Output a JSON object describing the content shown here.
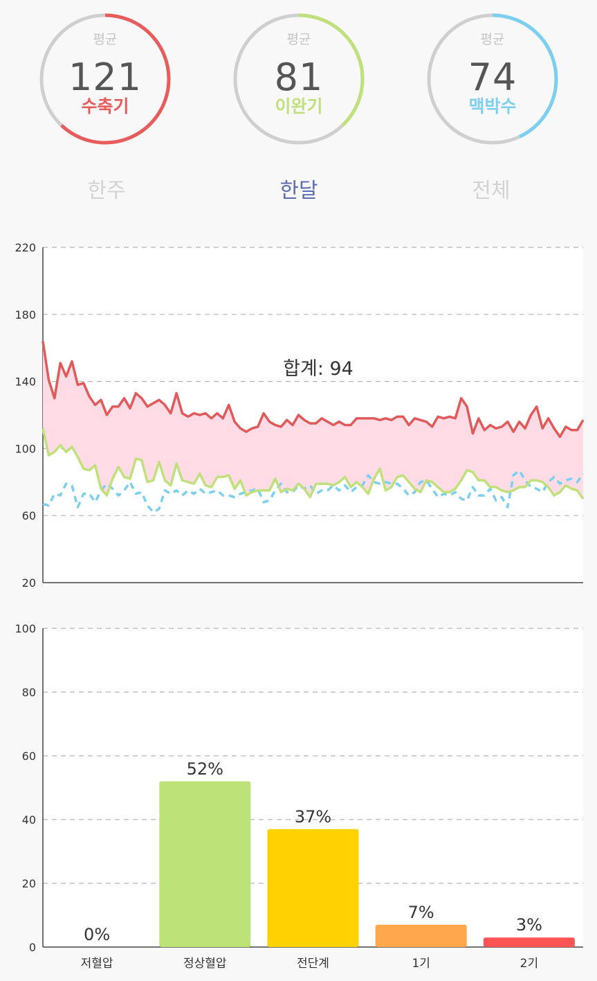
{
  "gauges": [
    {
      "avg_label": "평균",
      "value": "121",
      "name": "수축기",
      "color": "#e85c5c",
      "fraction": 0.62
    },
    {
      "avg_label": "평균",
      "value": "81",
      "name": "이완기",
      "color": "#bfe07a",
      "fraction": 0.38
    },
    {
      "avg_label": "평균",
      "value": "74",
      "name": "맥박수",
      "color": "#7dcff0",
      "fraction": 0.43
    }
  ],
  "periods": [
    {
      "label": "한주",
      "active": false
    },
    {
      "label": "한달",
      "active": true
    },
    {
      "label": "전체",
      "active": false
    }
  ],
  "chart_data": [
    {
      "type": "line",
      "ylim": [
        20,
        220
      ],
      "yticks": [
        20,
        60,
        100,
        140,
        180,
        220
      ],
      "annotation": "합계: 94",
      "grid": true,
      "series": [
        {
          "color": "#e05a5a",
          "style": "solid",
          "values": [
            164,
            141,
            130,
            151,
            143,
            152,
            138,
            139,
            131,
            126,
            129,
            120,
            125,
            125,
            130,
            124,
            133,
            130,
            125,
            127,
            129,
            126,
            121,
            133,
            121,
            119,
            121,
            120,
            121,
            118,
            121,
            118,
            126,
            116,
            112,
            110,
            112,
            113,
            121,
            116,
            114,
            113,
            117,
            114,
            120,
            117,
            115,
            115,
            118,
            116,
            114,
            116,
            114,
            114,
            118,
            118,
            118,
            118,
            117,
            118,
            117,
            119,
            119,
            114,
            118,
            117,
            116,
            113,
            119,
            118,
            119,
            118,
            130,
            125,
            109,
            118,
            111,
            114,
            112,
            113,
            116,
            110,
            116,
            112,
            120,
            125,
            112,
            118,
            112,
            107,
            113,
            111,
            111,
            117
          ]
        },
        {
          "color": "#bfe07a",
          "style": "solid",
          "values": [
            112,
            96,
            98,
            102,
            98,
            101,
            95,
            88,
            87,
            90,
            76,
            72,
            82,
            89,
            83,
            82,
            94,
            93,
            80,
            81,
            92,
            81,
            78,
            91,
            81,
            80,
            79,
            85,
            78,
            77,
            83,
            83,
            84,
            76,
            81,
            72,
            74,
            75,
            75,
            75,
            82,
            74,
            76,
            75,
            79,
            76,
            71,
            79,
            79,
            79,
            78,
            80,
            83,
            77,
            80,
            77,
            73,
            82,
            88,
            75,
            77,
            83,
            84,
            80,
            76,
            74,
            81,
            80,
            77,
            74,
            74,
            76,
            81,
            87,
            86,
            81,
            81,
            77,
            77,
            75,
            74,
            75,
            77,
            77,
            81,
            81,
            80,
            77,
            72,
            74,
            78,
            76,
            75,
            70
          ]
        },
        {
          "color": "#7dcff0",
          "style": "dashed",
          "values": [
            67,
            66,
            73,
            72,
            79,
            78,
            65,
            73,
            73,
            68,
            75,
            79,
            76,
            72,
            75,
            80,
            73,
            74,
            66,
            62,
            64,
            75,
            73,
            75,
            72,
            75,
            73,
            76,
            73,
            74,
            75,
            72,
            72,
            71,
            73,
            74,
            75,
            76,
            68,
            69,
            75,
            79,
            74,
            74,
            78,
            76,
            78,
            73,
            75,
            75,
            78,
            75,
            78,
            74,
            77,
            78,
            84,
            80,
            79,
            80,
            79,
            79,
            76,
            72,
            74,
            80,
            81,
            76,
            71,
            73,
            72,
            74,
            70,
            69,
            77,
            72,
            72,
            76,
            69,
            71,
            65,
            84,
            87,
            81,
            77,
            76,
            74,
            80,
            83,
            79,
            81,
            82,
            80,
            85
          ]
        }
      ]
    },
    {
      "type": "bar",
      "ylim": [
        0,
        100
      ],
      "yticks": [
        0,
        20,
        40,
        60,
        80,
        100
      ],
      "grid": true,
      "categories": [
        "저혈압",
        "정상혈압",
        "전단계",
        "1기",
        "2기"
      ],
      "values": [
        0,
        52,
        37,
        7,
        3
      ],
      "labels": [
        "0%",
        "52%",
        "37%",
        "7%",
        "3%"
      ],
      "colors": [
        "#cccccc",
        "#bde378",
        "#ffd200",
        "#ffa74d",
        "#ff5555"
      ]
    }
  ]
}
